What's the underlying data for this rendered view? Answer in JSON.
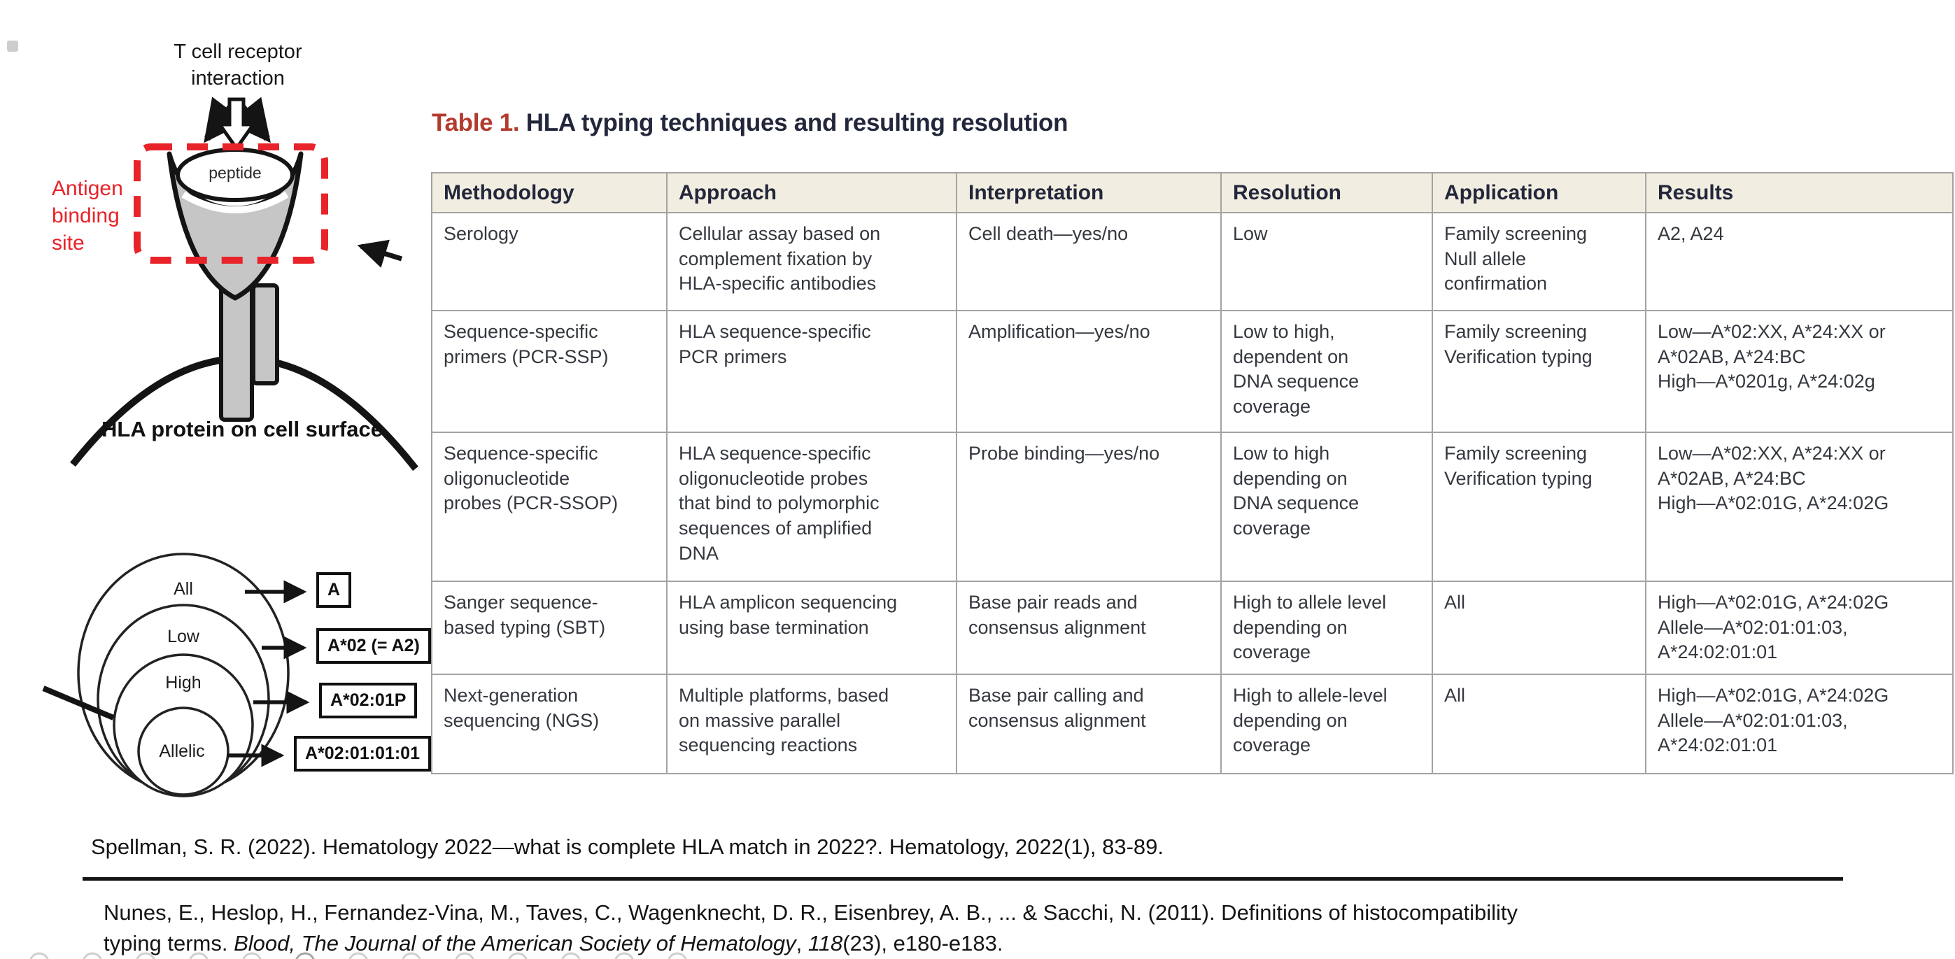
{
  "tcr_diagram": {
    "top_label": "T cell receptor\ninteraction",
    "antigen_label": "Antigen\nbinding\nsite",
    "peptide_label": "peptide",
    "bottom_label": "HLA protein on cell surface"
  },
  "rings_diagram": {
    "labels": [
      "All",
      "Low",
      "High",
      "Allelic"
    ],
    "boxes": [
      "A",
      "A*02 (= A2)",
      "A*02:01P",
      "A*02:01:01:01"
    ]
  },
  "table": {
    "title_prefix": "Table 1.",
    "title_rest": " HLA typing techniques and resulting resolution",
    "headers": [
      "Methodology",
      "Approach",
      "Interpretation",
      "Resolution",
      "Application",
      "Results"
    ],
    "rows": [
      [
        "Serology",
        "Cellular assay based on\ncomplement fixation by\nHLA-specific antibodies",
        "Cell death—yes/no",
        "Low",
        "Family screening\nNull allele\nconfirmation",
        "A2, A24"
      ],
      [
        "Sequence-specific\nprimers (PCR-SSP)",
        "HLA sequence-specific\nPCR primers",
        "Amplification—yes/no",
        "Low to high,\ndependent on\nDNA sequence\ncoverage",
        "Family screening\nVerification typing",
        "Low—A*02:XX, A*24:XX or\nA*02AB, A*24:BC\nHigh—A*0201g, A*24:02g"
      ],
      [
        "Sequence-specific\noligonucleotide\nprobes (PCR-SSOP)",
        "HLA sequence-specific\noligonucleotide probes\nthat bind to polymorphic\nsequences of amplified\nDNA",
        "Probe binding—yes/no",
        "Low to high\ndepending on\nDNA sequence\ncoverage",
        "Family screening\nVerification typing",
        "Low—A*02:XX, A*24:XX or\nA*02AB, A*24:BC\nHigh—A*02:01G, A*24:02G"
      ],
      [
        "Sanger sequence-\nbased typing (SBT)",
        "HLA amplicon sequencing\nusing base termination",
        "Base pair reads and\nconsensus alignment",
        "High to allele level\ndepending on\ncoverage",
        "All",
        "High—A*02:01G, A*24:02G\nAllele—A*02:01:01:03,\nA*24:02:01:01"
      ],
      [
        "Next-generation\nsequencing (NGS)",
        "Multiple platforms, based\non massive parallel\nsequencing reactions",
        "Base pair calling and\nconsensus alignment",
        "High to allele-level\ndepending on\ncoverage",
        "All",
        "High—A*02:01G, A*24:02G\nAllele—A*02:01:01:03,\nA*24:02:01:01"
      ]
    ]
  },
  "citations": {
    "first": "Spellman, S. R. (2022). Hematology 2022—what is complete HLA match in 2022?. Hematology, 2022(1), 83-89.",
    "second_pre": "Nunes, E., Heslop, H., Fernandez-Vina, M., Taves, C., Wagenknecht, D. R., Eisenbrey, A. B., ... & Sacchi, N. (2011). Definitions of histocompatibility\ntyping terms. ",
    "second_italic_journal": "Blood, The Journal of the American Society of Hematology",
    "second_mid": ", ",
    "second_italic_volume": "118",
    "second_post": "(23), e180-e183."
  },
  "colors": {
    "title_accent": "#b23b2e",
    "diagram_red": "#e8232a",
    "header_bg": "#f1eee1",
    "table_border": "#a3a3a3",
    "text_dark": "#23273b"
  }
}
